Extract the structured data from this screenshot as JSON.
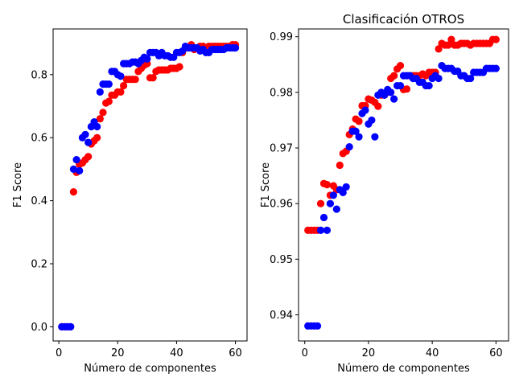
{
  "chart_data": [
    {
      "type": "scatter",
      "title": "",
      "xlabel": "Número de componentes",
      "ylabel": "F1 Score",
      "xlim": [
        -1.95,
        63.95
      ],
      "ylim": [
        -0.045,
        0.945
      ],
      "xticks": [
        0,
        20,
        40,
        60
      ],
      "xtick_labels": [
        "0",
        "20",
        "40",
        "60"
      ],
      "yticks": [
        0.0,
        0.2,
        0.4,
        0.6,
        0.8
      ],
      "ytick_labels": [
        "0.0",
        "0.2",
        "0.4",
        "0.6",
        "0.8"
      ],
      "grid": false,
      "series": [
        {
          "color": "#ff0000",
          "x": [
            1,
            2,
            3,
            4,
            5,
            6,
            7,
            8,
            9,
            10,
            11,
            12,
            13,
            14,
            15,
            16,
            17,
            18,
            19,
            20,
            21,
            22,
            23,
            24,
            25,
            26,
            27,
            28,
            29,
            30,
            31,
            32,
            33,
            34,
            35,
            36,
            37,
            38,
            39,
            40,
            41,
            42,
            43,
            44,
            45,
            46,
            47,
            48,
            49,
            50,
            51,
            52,
            53,
            54,
            55,
            56,
            57,
            58,
            59,
            60
          ],
          "y": [
            0.0,
            0.0,
            0.0,
            0.0,
            0.428,
            0.49,
            0.515,
            0.52,
            0.53,
            0.54,
            0.58,
            0.59,
            0.6,
            0.66,
            0.68,
            0.71,
            0.715,
            0.735,
            0.735,
            0.745,
            0.745,
            0.765,
            0.785,
            0.785,
            0.785,
            0.785,
            0.81,
            0.82,
            0.83,
            0.835,
            0.79,
            0.79,
            0.81,
            0.815,
            0.815,
            0.815,
            0.815,
            0.82,
            0.82,
            0.82,
            0.825,
            0.87,
            0.885,
            0.885,
            0.895,
            0.88,
            0.885,
            0.89,
            0.89,
            0.885,
            0.89,
            0.89,
            0.89,
            0.89,
            0.89,
            0.89,
            0.89,
            0.89,
            0.895,
            0.895
          ]
        },
        {
          "color": "#0000ff",
          "x": [
            1,
            2,
            3,
            4,
            5,
            6,
            7,
            8,
            9,
            10,
            11,
            12,
            13,
            14,
            15,
            16,
            17,
            18,
            19,
            20,
            21,
            22,
            23,
            24,
            25,
            26,
            27,
            28,
            29,
            30,
            31,
            32,
            33,
            34,
            35,
            36,
            37,
            38,
            39,
            40,
            41,
            42,
            43,
            44,
            45,
            46,
            47,
            48,
            49,
            50,
            51,
            52,
            53,
            54,
            55,
            56,
            57,
            58,
            59,
            60
          ],
          "y": [
            0.0,
            0.0,
            0.0,
            0.0,
            0.5,
            0.53,
            0.495,
            0.6,
            0.61,
            0.585,
            0.635,
            0.65,
            0.635,
            0.745,
            0.77,
            0.77,
            0.77,
            0.81,
            0.81,
            0.8,
            0.795,
            0.835,
            0.835,
            0.835,
            0.84,
            0.84,
            0.835,
            0.845,
            0.855,
            0.85,
            0.87,
            0.87,
            0.87,
            0.86,
            0.87,
            0.86,
            0.86,
            0.855,
            0.855,
            0.87,
            0.87,
            0.875,
            0.89,
            0.885,
            0.885,
            0.885,
            0.885,
            0.875,
            0.88,
            0.87,
            0.87,
            0.88,
            0.88,
            0.88,
            0.88,
            0.88,
            0.885,
            0.885,
            0.885,
            0.885
          ]
        }
      ]
    },
    {
      "type": "scatter",
      "title": "Clasificación OTROS",
      "xlabel": "Número de componentes",
      "ylabel": "F1 Score",
      "xlim": [
        -1.95,
        63.95
      ],
      "ylim": [
        0.9353,
        0.9914
      ],
      "xticks": [
        0,
        20,
        40,
        60
      ],
      "xtick_labels": [
        "0",
        "20",
        "40",
        "60"
      ],
      "yticks": [
        0.94,
        0.95,
        0.96,
        0.97,
        0.98,
        0.99
      ],
      "ytick_labels": [
        "0.94",
        "0.95",
        "0.96",
        "0.97",
        "0.98",
        "0.99"
      ],
      "grid": false,
      "series": [
        {
          "color": "#ff0000",
          "x": [
            1,
            2,
            3,
            4,
            5,
            6,
            7,
            8,
            9,
            10,
            11,
            12,
            13,
            14,
            15,
            16,
            17,
            18,
            19,
            20,
            21,
            22,
            23,
            24,
            25,
            26,
            27,
            28,
            29,
            30,
            31,
            32,
            33,
            34,
            35,
            36,
            37,
            38,
            39,
            40,
            41,
            42,
            43,
            44,
            45,
            46,
            47,
            48,
            49,
            50,
            51,
            52,
            53,
            54,
            55,
            56,
            57,
            58,
            59,
            60
          ],
          "y": [
            0.9552,
            0.9552,
            0.9552,
            0.9552,
            0.96,
            0.9636,
            0.9634,
            0.9615,
            0.9632,
            0.9625,
            0.9669,
            0.969,
            0.9694,
            0.9724,
            0.9734,
            0.9752,
            0.9748,
            0.9776,
            0.9776,
            0.9788,
            0.9786,
            0.9782,
            0.9775,
            0.9795,
            0.9795,
            0.98,
            0.9825,
            0.983,
            0.9842,
            0.9848,
            0.9805,
            0.9806,
            0.983,
            0.983,
            0.983,
            0.983,
            0.9833,
            0.983,
            0.9836,
            0.9836,
            0.9836,
            0.9878,
            0.9888,
            0.9885,
            0.9885,
            0.9895,
            0.9885,
            0.9885,
            0.9888,
            0.9888,
            0.9888,
            0.9885,
            0.9888,
            0.9888,
            0.9888,
            0.9888,
            0.9888,
            0.9888,
            0.9895,
            0.9895
          ]
        },
        {
          "color": "#0000ff",
          "x": [
            1,
            2,
            3,
            4,
            5,
            6,
            7,
            8,
            9,
            10,
            11,
            12,
            13,
            14,
            15,
            16,
            17,
            18,
            19,
            20,
            21,
            22,
            23,
            24,
            25,
            26,
            27,
            28,
            29,
            30,
            31,
            32,
            33,
            34,
            35,
            36,
            37,
            38,
            39,
            40,
            41,
            42,
            43,
            44,
            45,
            46,
            47,
            48,
            49,
            50,
            51,
            52,
            53,
            54,
            55,
            56,
            57,
            58,
            59,
            60
          ],
          "y": [
            0.938,
            0.938,
            0.938,
            0.938,
            0.9552,
            0.9575,
            0.9552,
            0.96,
            0.9615,
            0.959,
            0.9625,
            0.962,
            0.963,
            0.9702,
            0.973,
            0.973,
            0.972,
            0.9762,
            0.9768,
            0.9743,
            0.975,
            0.972,
            0.9795,
            0.98,
            0.9795,
            0.9805,
            0.98,
            0.9788,
            0.9812,
            0.9812,
            0.983,
            0.983,
            0.983,
            0.9825,
            0.9825,
            0.9818,
            0.9818,
            0.9812,
            0.9812,
            0.9825,
            0.983,
            0.9825,
            0.9848,
            0.9843,
            0.9843,
            0.9843,
            0.9838,
            0.9838,
            0.983,
            0.983,
            0.9825,
            0.9825,
            0.9836,
            0.9836,
            0.9836,
            0.9836,
            0.9843,
            0.9843,
            0.9843,
            0.9843
          ]
        }
      ]
    }
  ]
}
